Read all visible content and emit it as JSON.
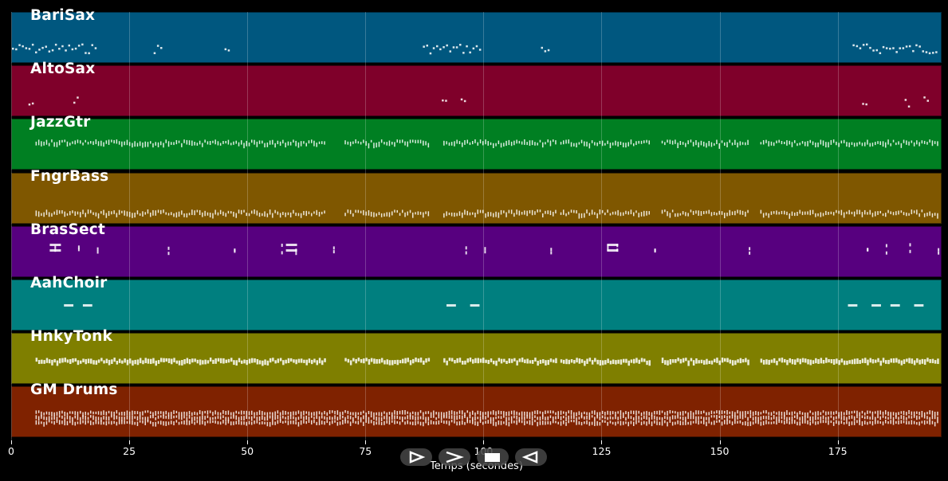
{
  "tracks": [
    {
      "name": "BariSax",
      "color": "#00577f",
      "density": 0.35,
      "style": "sparse"
    },
    {
      "name": "AltoSax",
      "color": "#7f002a",
      "density": 0.12,
      "style": "sparse"
    },
    {
      "name": "JazzGtr",
      "color": "#007f22",
      "density": 0.95,
      "style": "dense"
    },
    {
      "name": "FngrBass",
      "color": "#7f5700",
      "density": 0.95,
      "style": "dense"
    },
    {
      "name": "BrasSect",
      "color": "#57007f",
      "density": 0.25,
      "style": "chords"
    },
    {
      "name": "AahChoir",
      "color": "#007f7f",
      "density": 0.1,
      "style": "long"
    },
    {
      "name": "HnkyTonk",
      "color": "#7f7f00",
      "density": 0.95,
      "style": "block"
    },
    {
      "name": "GM Drums",
      "color": "#7f2200",
      "density": 1.0,
      "style": "drums"
    }
  ],
  "axis": {
    "x_label": "Temps (secondes)",
    "x_max": 197,
    "ticks": [
      0,
      25,
      50,
      75,
      100,
      125,
      150,
      175
    ]
  },
  "controls": {
    "play_icon": "play-icon",
    "forward_icon": "fast-forward-icon",
    "stop_icon": "stop-icon",
    "rewind_icon": "rewind-icon"
  }
}
